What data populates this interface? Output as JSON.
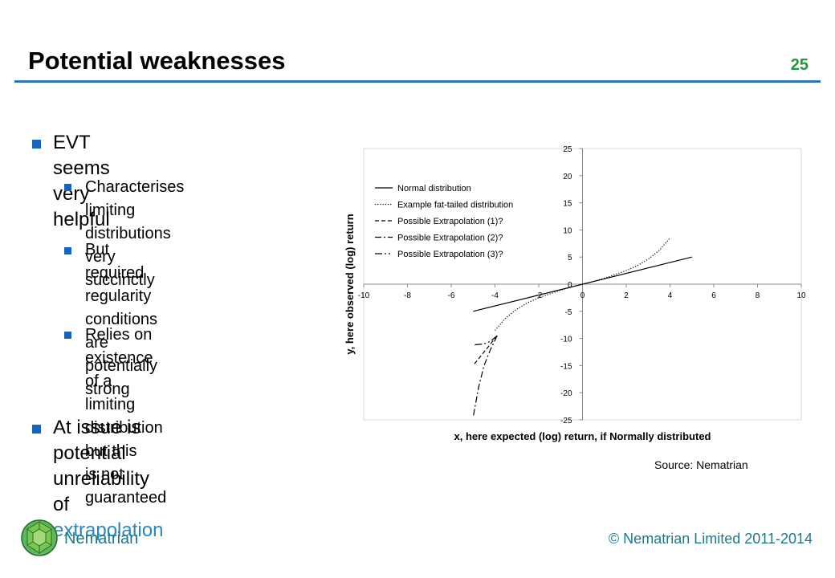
{
  "slide": {
    "title": "Potential weaknesses",
    "number": "25"
  },
  "bullets": {
    "b1": "EVT seems very helpful",
    "b1_sub1_l1": "Characterises limiting",
    "b1_sub1_l2": "distributions very succinctly",
    "b1_sub2_l1": "But required regularity",
    "b1_sub2_l2": "conditions are potentially",
    "b1_sub2_l3": "strong",
    "b1_sub3_l1": "Relies on existence of a",
    "b1_sub3_l2": "limiting distribution but this",
    "b1_sub3_l3": "is not guaranteed",
    "b2_l1": "At issue is potential",
    "b2_l2_prefix": "unreliability of ",
    "b2_l2_link": "extrapolation"
  },
  "source": "Source: Nematrian",
  "footer": {
    "brand": "Nematrian",
    "copyright": "© Nematrian Limited 2011-2014"
  },
  "colors": {
    "accent_blue": "#2e75b6",
    "bullet_blue": "#1565c0",
    "slide_number_green": "#1f9a3a",
    "footer_teal": "#1a7a8a",
    "link_blue": "#2e86c1"
  },
  "chart_data": {
    "type": "line",
    "xlabel": "x, here expected (log) return, if Normally distributed",
    "ylabel": "y, here observed (log) return",
    "xlim": [
      -10,
      10
    ],
    "ylim": [
      -25,
      25
    ],
    "xticks": [
      -10,
      -8,
      -6,
      -4,
      -2,
      0,
      2,
      4,
      6,
      8,
      10
    ],
    "yticks": [
      25,
      20,
      15,
      10,
      5,
      0,
      -5,
      -10,
      -15,
      -20,
      -25
    ],
    "xtick_labels": [
      "-10",
      "-8",
      "-6",
      "-4",
      "-2",
      "0",
      "2",
      "4",
      "6",
      "8",
      "10"
    ],
    "ytick_labels": [
      "25",
      "20",
      "15",
      "10",
      "5",
      "0",
      "-5",
      "-10",
      "-15",
      "-20",
      "-25"
    ],
    "grid": false,
    "legend_position": "top-left",
    "series": [
      {
        "name": "Normal distribution",
        "style": "solid",
        "x": [
          -5,
          5
        ],
        "y": [
          -5,
          5
        ]
      },
      {
        "name": "Example fat-tailed distribution",
        "style": "dotted",
        "x": [
          -4,
          -3.5,
          -3,
          -2.5,
          -2,
          -1.5,
          -1,
          -0.5,
          0,
          0.5,
          1,
          1.5,
          2,
          2.5,
          3,
          3.5,
          4
        ],
        "y": [
          -8.5,
          -6.2,
          -4.6,
          -3.4,
          -2.5,
          -1.8,
          -1.1,
          -0.5,
          0,
          0.5,
          1.1,
          1.8,
          2.5,
          3.4,
          4.6,
          6.2,
          8.5
        ]
      },
      {
        "name": "Possible Extrapolation (1)?",
        "style": "dashed",
        "x": [
          -3.9,
          -4.2,
          -4.5,
          -4.8,
          -5
        ],
        "y": [
          -9.5,
          -11,
          -12.5,
          -14,
          -15
        ]
      },
      {
        "name": "Possible Extrapolation (2)?",
        "style": "dashdot",
        "x": [
          -3.9,
          -4.2,
          -4.5,
          -4.75,
          -5
        ],
        "y": [
          -9.5,
          -12,
          -15,
          -19,
          -24.5
        ]
      },
      {
        "name": "Possible Extrapolation (3)?",
        "style": "dashdotdot",
        "x": [
          -3.9,
          -4.2,
          -4.5,
          -5
        ],
        "y": [
          -9.5,
          -10.5,
          -11,
          -11.2
        ]
      }
    ]
  }
}
